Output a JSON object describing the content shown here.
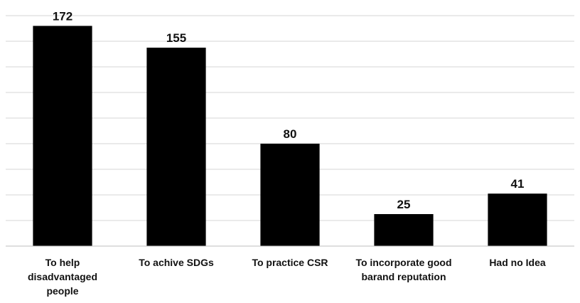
{
  "chart_data": {
    "type": "bar",
    "categories": [
      [
        "To help",
        "disadvantaged",
        "people"
      ],
      [
        "To achive SDGs"
      ],
      [
        "To practice CSR"
      ],
      [
        "To incorporate good",
        "barand reputation"
      ],
      [
        "Had no Idea"
      ]
    ],
    "values": [
      172,
      155,
      80,
      25,
      41
    ],
    "ylim": [
      0,
      180
    ],
    "grid": true,
    "bar_color": "#000000",
    "data_labels": [
      "172",
      "155",
      "80",
      "25",
      "41"
    ]
  }
}
